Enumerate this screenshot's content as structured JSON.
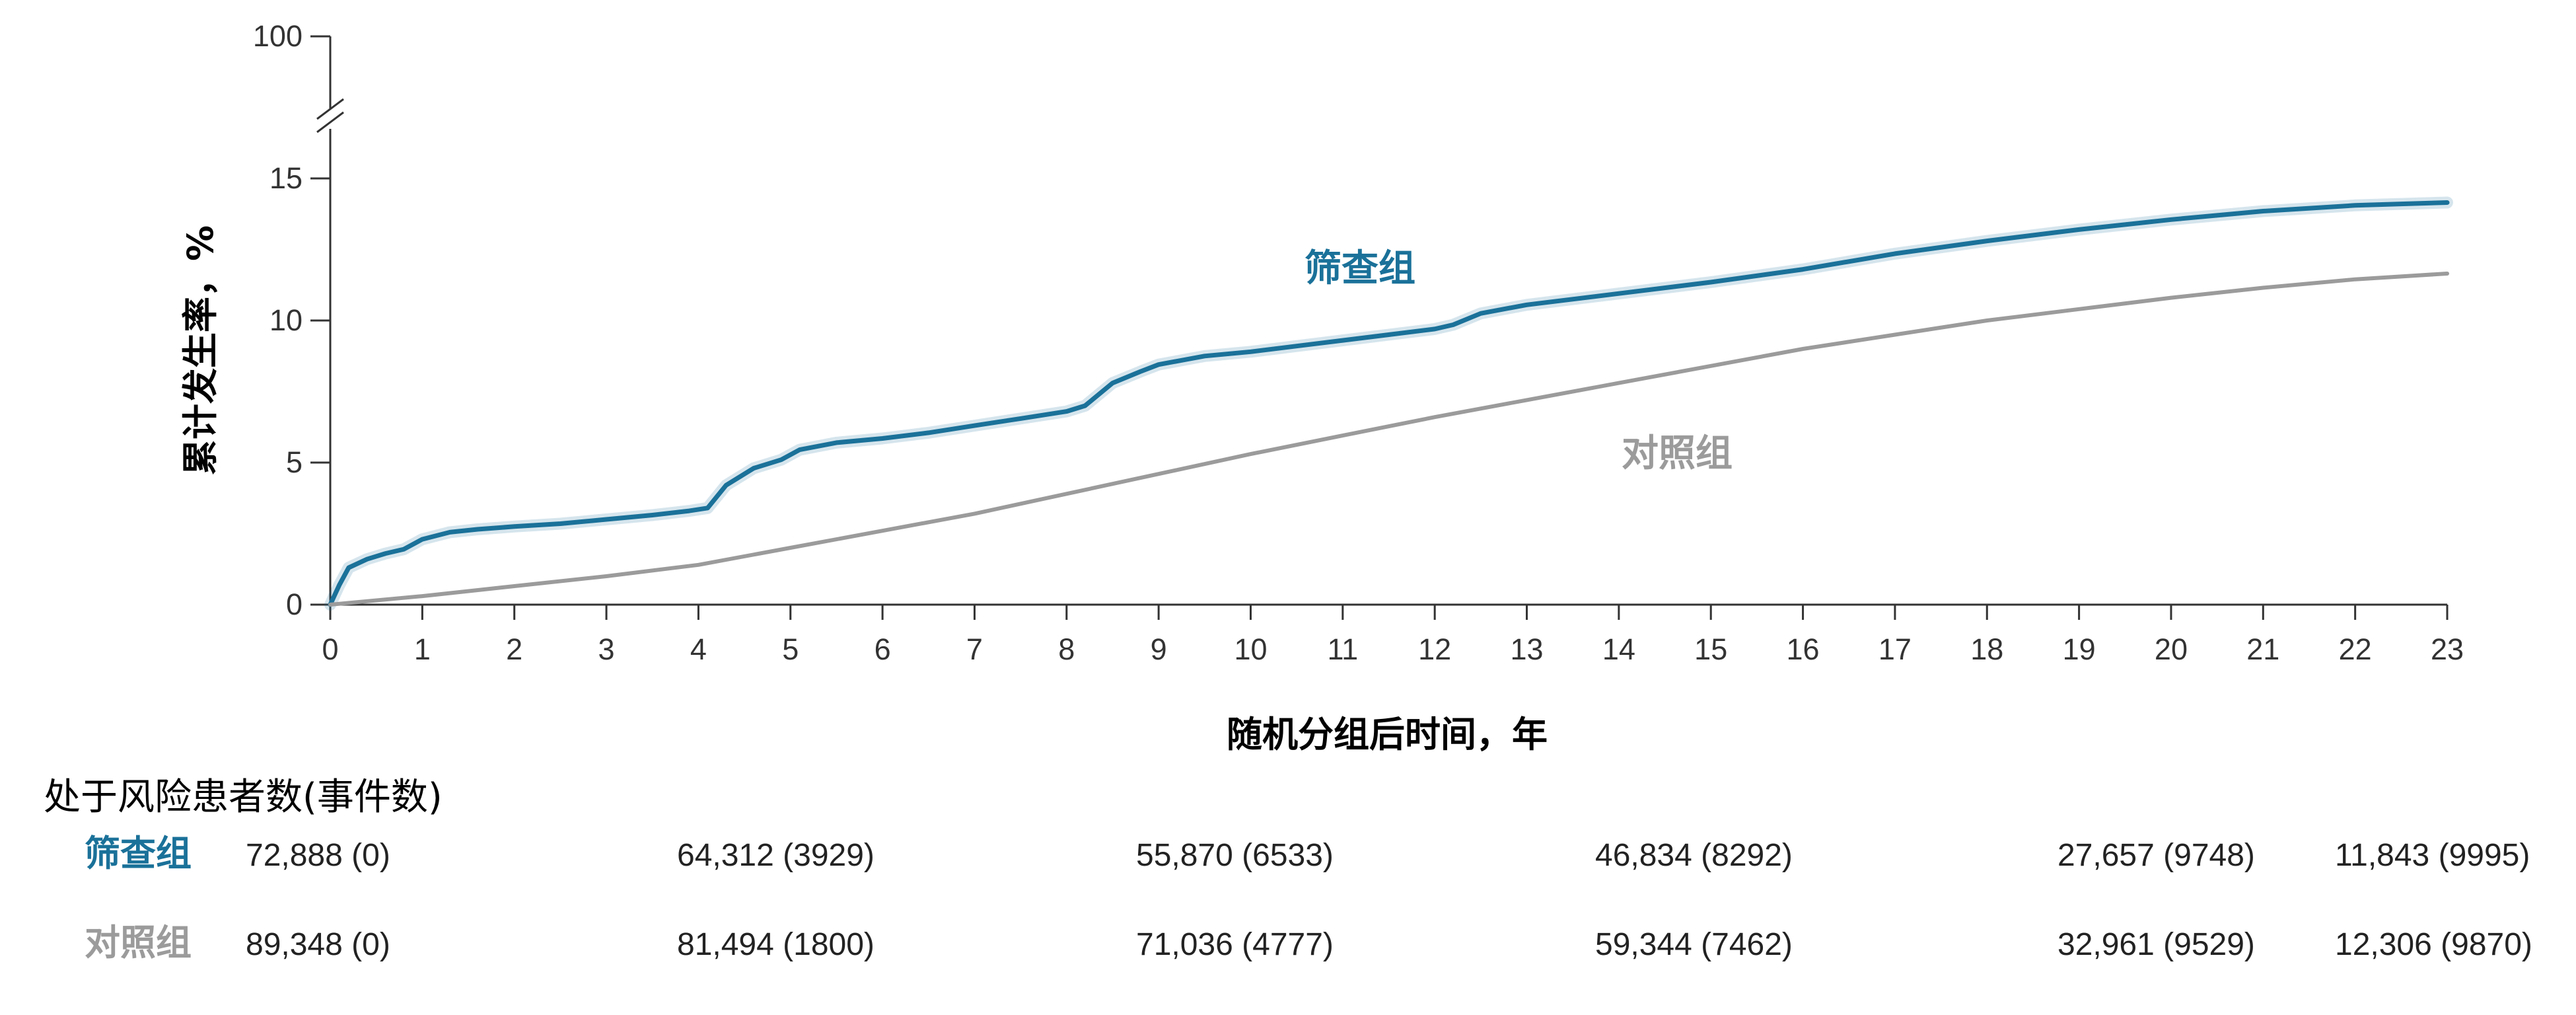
{
  "colors": {
    "screening": "#1a7199",
    "control": "#9b9b9b",
    "axis": "#333333"
  },
  "chart_data": {
    "type": "line",
    "title": "",
    "xlabel": "随机分组后时间，年",
    "ylabel": "累计发生率，%",
    "xlim": [
      0,
      23
    ],
    "ylim": [
      0,
      15
    ],
    "x_ticks": [
      "0",
      "1",
      "2",
      "3",
      "4",
      "5",
      "6",
      "7",
      "8",
      "9",
      "10",
      "11",
      "12",
      "13",
      "14",
      "15",
      "16",
      "17",
      "18",
      "19",
      "20",
      "21",
      "22",
      "23"
    ],
    "y_ticks": [
      "0",
      "5",
      "10",
      "15"
    ],
    "y_break_top_label": "100",
    "grid": false,
    "series": [
      {
        "name": "筛查组",
        "color": "#1a7199",
        "points": [
          [
            0,
            0
          ],
          [
            0.1,
            0.7
          ],
          [
            0.2,
            1.3
          ],
          [
            0.4,
            1.6
          ],
          [
            0.6,
            1.8
          ],
          [
            0.8,
            1.95
          ],
          [
            1,
            2.3
          ],
          [
            1.3,
            2.55
          ],
          [
            1.6,
            2.65
          ],
          [
            2,
            2.75
          ],
          [
            2.5,
            2.85
          ],
          [
            3,
            3.0
          ],
          [
            3.5,
            3.15
          ],
          [
            3.9,
            3.3
          ],
          [
            4.1,
            3.4
          ],
          [
            4.3,
            4.2
          ],
          [
            4.6,
            4.8
          ],
          [
            4.9,
            5.1
          ],
          [
            5.1,
            5.45
          ],
          [
            5.5,
            5.7
          ],
          [
            6,
            5.85
          ],
          [
            6.5,
            6.05
          ],
          [
            7,
            6.3
          ],
          [
            7.5,
            6.55
          ],
          [
            8,
            6.8
          ],
          [
            8.2,
            7.0
          ],
          [
            8.5,
            7.8
          ],
          [
            8.8,
            8.2
          ],
          [
            9,
            8.45
          ],
          [
            9.5,
            8.75
          ],
          [
            10,
            8.9
          ],
          [
            10.5,
            9.1
          ],
          [
            11,
            9.3
          ],
          [
            11.5,
            9.5
          ],
          [
            12,
            9.7
          ],
          [
            12.2,
            9.85
          ],
          [
            12.5,
            10.25
          ],
          [
            13,
            10.55
          ],
          [
            14,
            10.95
          ],
          [
            15,
            11.35
          ],
          [
            16,
            11.8
          ],
          [
            17,
            12.35
          ],
          [
            18,
            12.8
          ],
          [
            19,
            13.2
          ],
          [
            20,
            13.55
          ],
          [
            21,
            13.85
          ],
          [
            22,
            14.05
          ],
          [
            23,
            14.15
          ]
        ]
      },
      {
        "name": "对照组",
        "color": "#9b9b9b",
        "points": [
          [
            0,
            0
          ],
          [
            1,
            0.3
          ],
          [
            2,
            0.65
          ],
          [
            3,
            1.0
          ],
          [
            4,
            1.4
          ],
          [
            5,
            2.0
          ],
          [
            6,
            2.6
          ],
          [
            7,
            3.2
          ],
          [
            8,
            3.9
          ],
          [
            9,
            4.6
          ],
          [
            10,
            5.3
          ],
          [
            11,
            5.95
          ],
          [
            12,
            6.6
          ],
          [
            13,
            7.2
          ],
          [
            14,
            7.8
          ],
          [
            15,
            8.4
          ],
          [
            16,
            9.0
          ],
          [
            17,
            9.5
          ],
          [
            18,
            10.0
          ],
          [
            19,
            10.4
          ],
          [
            20,
            10.8
          ],
          [
            21,
            11.15
          ],
          [
            22,
            11.45
          ],
          [
            23,
            11.65
          ]
        ]
      }
    ]
  },
  "risk_table": {
    "title": "处于风险患者数(事件数)",
    "rows": [
      {
        "label": "筛查组",
        "cells": [
          "72,888 (0)",
          "64,312 (3929)",
          "55,870 (6533)",
          "46,834 (8292)",
          "27,657 (9748)",
          "11,843 (9995)"
        ]
      },
      {
        "label": "对照组",
        "cells": [
          "89,348 (0)",
          "81,494 (1800)",
          "71,036 (4777)",
          "59,344 (7462)",
          "32,961 (9529)",
          "12,306 (9870)"
        ]
      }
    ]
  }
}
